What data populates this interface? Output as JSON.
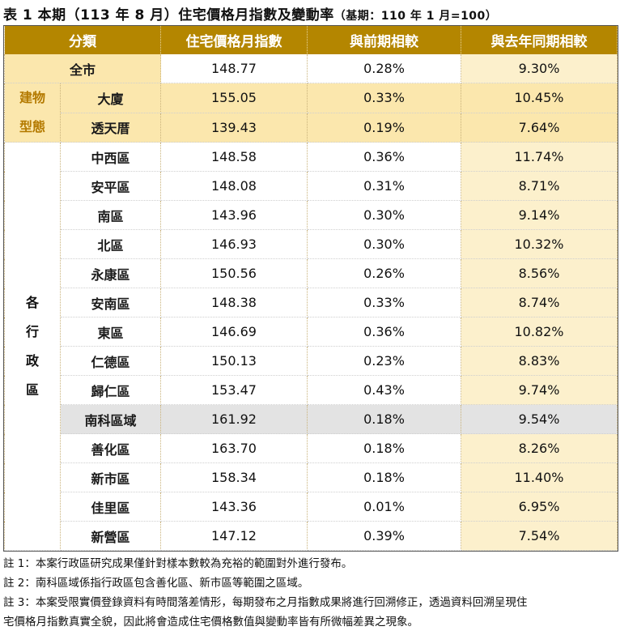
{
  "title": {
    "main": "表 1 本期（113 年 8 月）住宅價格月指數及變動率",
    "base": "（基期：110 年 1 月=100）"
  },
  "headers": [
    "分類",
    "住宅價格月指數",
    "與前期相較",
    "與去年同期相較"
  ],
  "city": {
    "label": "全市",
    "index": "148.77",
    "mom": "0.28%",
    "yoy": "9.30%"
  },
  "building_group": {
    "label_line1": "建物",
    "label_line2": "型態",
    "rows": [
      {
        "name": "大廈",
        "index": "155.05",
        "mom": "0.33%",
        "yoy": "10.45%"
      },
      {
        "name": "透天厝",
        "index": "139.43",
        "mom": "0.19%",
        "yoy": "7.64%"
      }
    ]
  },
  "district_group": {
    "label_chars": [
      "各",
      "行",
      "政",
      "區"
    ],
    "rows": [
      {
        "name": "中西區",
        "index": "148.58",
        "mom": "0.36%",
        "yoy": "11.74%"
      },
      {
        "name": "安平區",
        "index": "148.08",
        "mom": "0.31%",
        "yoy": "8.71%"
      },
      {
        "name": "南區",
        "index": "143.96",
        "mom": "0.30%",
        "yoy": "9.14%"
      },
      {
        "name": "北區",
        "index": "146.93",
        "mom": "0.30%",
        "yoy": "10.32%"
      },
      {
        "name": "永康區",
        "index": "150.56",
        "mom": "0.26%",
        "yoy": "8.56%"
      },
      {
        "name": "安南區",
        "index": "148.38",
        "mom": "0.33%",
        "yoy": "8.74%"
      },
      {
        "name": "東區",
        "index": "146.69",
        "mom": "0.36%",
        "yoy": "10.82%"
      },
      {
        "name": "仁德區",
        "index": "150.13",
        "mom": "0.23%",
        "yoy": "8.83%"
      },
      {
        "name": "歸仁區",
        "index": "153.47",
        "mom": "0.43%",
        "yoy": "9.74%"
      },
      {
        "name": "南科區域",
        "index": "161.92",
        "mom": "0.18%",
        "yoy": "9.54%"
      },
      {
        "name": "善化區",
        "index": "163.70",
        "mom": "0.18%",
        "yoy": "8.26%"
      },
      {
        "name": "新市區",
        "index": "158.34",
        "mom": "0.18%",
        "yoy": "11.40%"
      },
      {
        "name": "佳里區",
        "index": "143.36",
        "mom": "0.01%",
        "yoy": "6.95%"
      },
      {
        "name": "新營區",
        "index": "147.12",
        "mom": "0.39%",
        "yoy": "7.54%"
      }
    ]
  },
  "notes": [
    "註 1：本案行政區研究成果僅針對樣本數較為充裕的範圍對外進行發布。",
    "註 2：南科區域係指行政區包含善化區、新市區等範圍之區域。",
    "註 3：本案受限實價登錄資料有時間落差情形，每期發布之月指數成果將進行回溯修正，透過資料回溯呈現住",
    "宅價格月指數真實全貌，因此將會造成住宅價格數值與變動率皆有所微幅差異之現象。"
  ],
  "colors": {
    "header": "#b48600",
    "gold": "#fbe7ad",
    "pale": "#fcf0cc",
    "grey": "#e3e3e3",
    "group_text": "#b47a00"
  }
}
